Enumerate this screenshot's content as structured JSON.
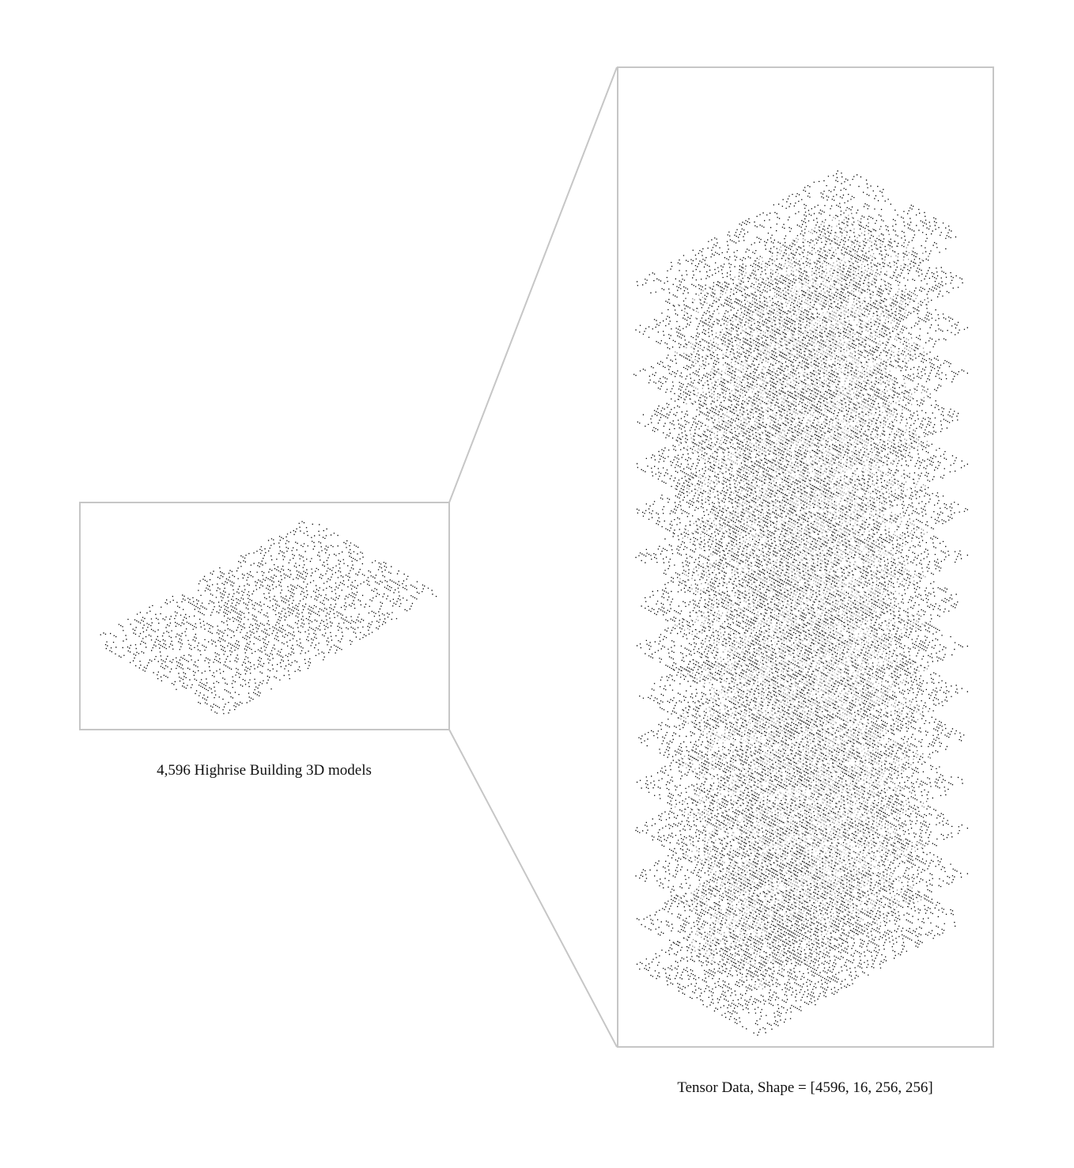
{
  "left_panel": {
    "caption": "4,596 Highrise Building 3D models"
  },
  "right_panel": {
    "caption": "Tensor Data, Shape = [4596, 16, 256, 256]",
    "layer_count": 16
  },
  "colors": {
    "frame": "#c6c6c6",
    "point": "#000000",
    "background": "#ffffff"
  }
}
